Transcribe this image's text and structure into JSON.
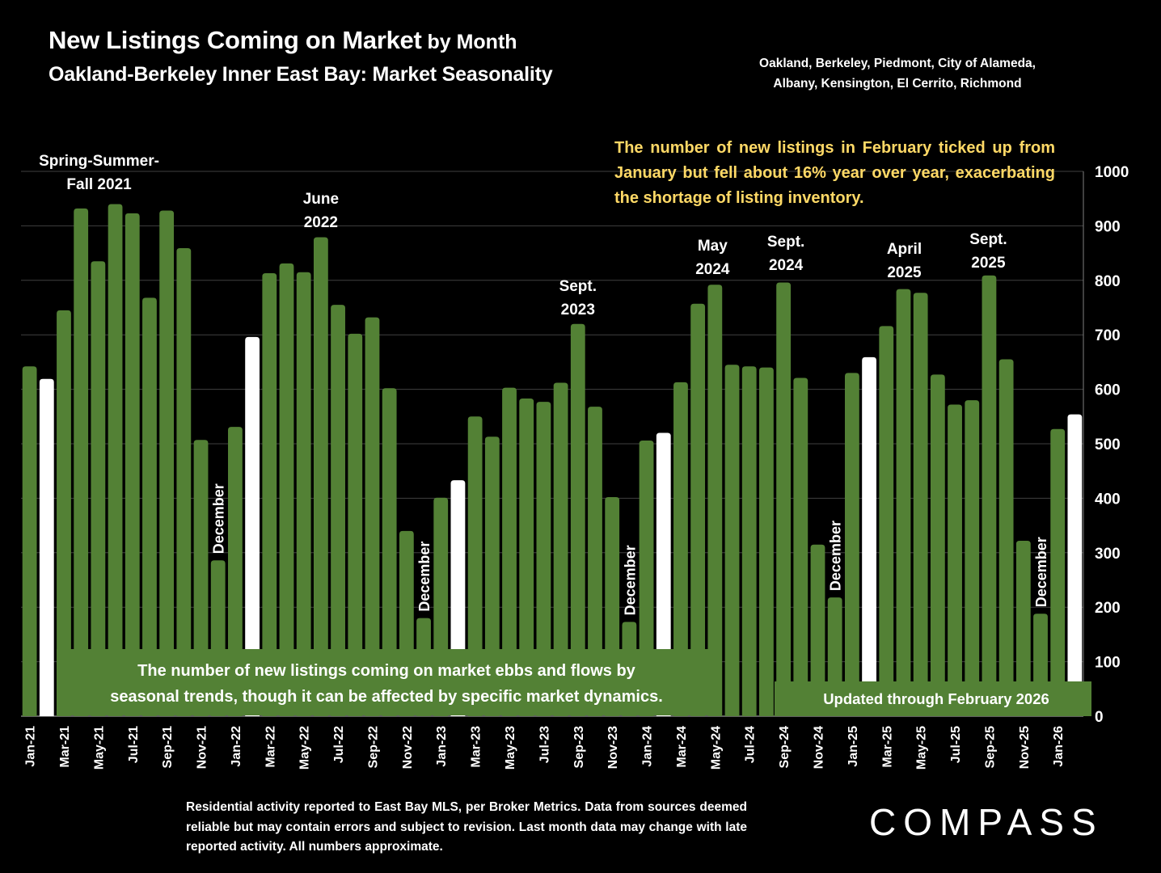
{
  "header": {
    "title_main": "New Listings Coming on Market",
    "title_suffix": " by Month",
    "subtitle": "Oakland-Berkeley Inner East Bay: Market Seasonality",
    "areas_line1": "Oakland, Berkeley, Piedmont, City of Alameda,",
    "areas_line2": "Albany, Kensington, El Cerrito, Richmond"
  },
  "callout": "The number of new listings in February ticked up from January but fell about 16% year over year, exacerbating the shortage of listing inventory.",
  "footer": "Residential activity reported to East Bay MLS, per Broker Metrics. Data from sources deemed reliable but may contain errors and subject to revision. Last month data may change with late reported activity. All numbers approximate.",
  "logo": "COMPASS",
  "colors": {
    "bar": "#538135",
    "highlight_bar": "#FFFFFF",
    "callout_text": "#FFD966",
    "background": "#000000"
  },
  "chart_data": {
    "type": "bar",
    "title": "New Listings Coming on Market by Month",
    "xlabel": "",
    "ylabel": "",
    "ylim": [
      0,
      1000
    ],
    "yticks": [
      0,
      100,
      200,
      300,
      400,
      500,
      600,
      700,
      800,
      900,
      1000
    ],
    "y_axis_position": "right",
    "grid": true,
    "legend": "none",
    "categories": [
      "Jan-21",
      "Feb-21",
      "Mar-21",
      "Apr-21",
      "May-21",
      "Jun-21",
      "Jul-21",
      "Aug-21",
      "Sep-21",
      "Oct-21",
      "Nov-21",
      "Dec-21",
      "Jan-22",
      "Feb-22",
      "Mar-22",
      "Apr-22",
      "May-22",
      "Jun-22",
      "Jul-22",
      "Aug-22",
      "Sep-22",
      "Oct-22",
      "Nov-22",
      "Dec-22",
      "Jan-23",
      "Feb-23",
      "Mar-23",
      "Apr-23",
      "May-23",
      "Jun-23",
      "Jul-23",
      "Aug-23",
      "Sep-23",
      "Oct-23",
      "Nov-23",
      "Dec-23",
      "Jan-24",
      "Feb-24",
      "Mar-24",
      "Apr-24",
      "May-24",
      "Jun-24",
      "Jul-24",
      "Aug-24",
      "Sep-24",
      "Oct-24",
      "Nov-24",
      "Dec-24",
      "Jan-25",
      "Feb-25",
      "Mar-25",
      "Apr-25",
      "May-25",
      "Jun-25",
      "Jul-25",
      "Aug-25",
      "Sep-25",
      "Oct-25",
      "Nov-25",
      "Dec-25",
      "Jan-26",
      "Feb-26"
    ],
    "values": [
      642,
      619,
      745,
      932,
      835,
      940,
      923,
      768,
      928,
      859,
      507,
      286,
      531,
      696,
      813,
      831,
      815,
      879,
      755,
      702,
      732,
      602,
      340,
      180,
      401,
      433,
      550,
      513,
      603,
      583,
      577,
      612,
      720,
      568,
      402,
      173,
      506,
      520,
      613,
      757,
      792,
      645,
      642,
      640,
      796,
      621,
      315,
      218,
      630,
      659,
      716,
      784,
      777,
      627,
      572,
      580,
      809,
      655,
      322,
      188,
      527,
      554
    ],
    "highlighted": [
      "Feb-21",
      "Feb-22",
      "Feb-23",
      "Feb-24",
      "Feb-25",
      "Feb-26"
    ],
    "tick_labels_shown": [
      "Jan-21",
      "Mar-21",
      "May-21",
      "Jul-21",
      "Sep-21",
      "Nov-21",
      "Jan-22",
      "Mar-22",
      "May-22",
      "Jul-22",
      "Sep-22",
      "Nov-22",
      "Jan-23",
      "Mar-23",
      "May-23",
      "Jul-23",
      "Sep-23",
      "Nov-23",
      "Jan-24",
      "Mar-24",
      "May-24",
      "Jul-24",
      "Sep-24",
      "Nov-24",
      "Jan-25",
      "Mar-25",
      "May-25",
      "Jul-25",
      "Sep-25",
      "Nov-25",
      "Jan-26"
    ],
    "annotations": [
      {
        "lines": [
          "Spring-Summer-",
          "Fall  2021"
        ],
        "at": "Jun-21"
      },
      {
        "lines": [
          "June",
          "2022"
        ],
        "at": "Jun-22"
      },
      {
        "lines": [
          "Sept.",
          "2023"
        ],
        "at": "Sep-23"
      },
      {
        "lines": [
          "May",
          "2024"
        ],
        "at": "May-24"
      },
      {
        "lines": [
          "Sept.",
          "2024"
        ],
        "at": "Sep-24"
      },
      {
        "lines": [
          "April",
          "2025"
        ],
        "at": "Apr-25"
      },
      {
        "lines": [
          "Sept.",
          "2025"
        ],
        "at": "Sep-25"
      }
    ],
    "december_labels": [
      {
        "text": "December",
        "at": "Dec-21"
      },
      {
        "text": "December",
        "at": "Dec-22"
      },
      {
        "text": "December",
        "at": "Dec-23"
      },
      {
        "text": "December",
        "at": "Dec-24"
      },
      {
        "text": "December",
        "at": "Dec-25"
      }
    ],
    "note_box": [
      "The number of new listings coming on market ebbs and flows by",
      "seasonal trends, though it can be affected by specific market dynamics."
    ],
    "updated_box": "Updated through February 2026"
  }
}
